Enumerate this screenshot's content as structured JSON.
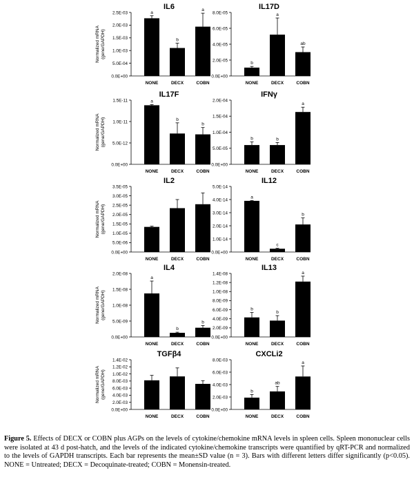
{
  "chart_data": [
    {
      "type": "bar",
      "title": "IL6",
      "ylabel": "Normalized mRNA\n(gene/GAPDH)",
      "categories": [
        "NONE",
        "DECX",
        "COBN"
      ],
      "yticks": [
        "0.0E+00",
        "5.0E-04",
        "1.0E-03",
        "1.5E-03",
        "2.0E-03",
        "2.5E-03"
      ],
      "ylim": [
        0,
        0.0025
      ],
      "values": [
        0.00227,
        0.0011,
        0.00194
      ],
      "errors": [
        0.0001,
        0.00019,
        0.00053
      ],
      "letters": [
        "a",
        "b",
        "a"
      ]
    },
    {
      "type": "bar",
      "title": "IL17D",
      "ylabel": "",
      "categories": [
        "NONE",
        "DECX",
        "COBN"
      ],
      "yticks": [
        "0.0E+00",
        "2.0E-05",
        "4.0E-05",
        "6.0E-05",
        "8.0E-05"
      ],
      "ylim": [
        0,
        8e-05
      ],
      "values": [
        1.05e-05,
        5.2e-05,
        3e-05
      ],
      "errors": [
        1.5e-06,
        2.1e-05,
        6.5e-06
      ],
      "letters": [
        "b",
        "a",
        "ab"
      ]
    },
    {
      "type": "bar",
      "title": "IL17F",
      "ylabel": "Normalized mRNA\n(gene/GAPDH)",
      "categories": [
        "NONE",
        "DECX",
        "COBN"
      ],
      "yticks": [
        "0.0E+00",
        "5.0E-12",
        "1.0E-11",
        "1.5E-11"
      ],
      "ylim": [
        0,
        1.5e-11
      ],
      "values": [
        1.38e-11,
        7.2e-12,
        7e-12
      ],
      "errors": [
        1.5e-13,
        2.5e-12,
        1.6e-12
      ],
      "letters": [
        "a",
        "b",
        "b"
      ]
    },
    {
      "type": "bar",
      "title": "IFNγ",
      "ylabel": "",
      "categories": [
        "NONE",
        "DECX",
        "COBN"
      ],
      "yticks": [
        "0.0E+00",
        "5.0E-05",
        "1.0E-04",
        "1.5E-04",
        "2.0E-04"
      ],
      "ylim": [
        0,
        0.0002
      ],
      "values": [
        6e-05,
        6e-05,
        0.000163
      ],
      "errors": [
        1e-05,
        8e-06,
        1.5e-05
      ],
      "letters": [
        "b",
        "b",
        "a"
      ]
    },
    {
      "type": "bar",
      "title": "IL2",
      "ylabel": "Normalized mRNA\n(gene/GAPDH)",
      "categories": [
        "NONE",
        "DECX",
        "COBN"
      ],
      "yticks": [
        "0.0E+00",
        "5.0E-06",
        "1.0E-05",
        "1.5E-05",
        "2.0E-05",
        "2.5E-05",
        "3.0E-05",
        "3.5E-05"
      ],
      "ylim": [
        0,
        3.5e-05
      ],
      "values": [
        1.34e-05,
        2.34e-05,
        2.55e-05
      ],
      "errors": [
        4e-07,
        4.6e-06,
        6e-06
      ],
      "letters": [
        "",
        "",
        ""
      ]
    },
    {
      "type": "bar",
      "title": "IL12",
      "ylabel": "",
      "categories": [
        "NONE",
        "DECX",
        "COBN"
      ],
      "yticks": [
        "0.0E+00",
        "1.0E-14",
        "2.0E-14",
        "3.0E-14",
        "4.0E-14",
        "5.0E-14"
      ],
      "ylim": [
        0,
        5e-14
      ],
      "values": [
        3.9e-14,
        2.5e-15,
        2.1e-14
      ],
      "errors": [
        3e-16,
        4e-16,
        5e-15
      ],
      "letters": [
        "a",
        "c",
        "b"
      ]
    },
    {
      "type": "bar",
      "title": "IL4",
      "ylabel": "Normalized mRNA\n(gene/GAPDH)",
      "categories": [
        "NONE",
        "DECX",
        "COBN"
      ],
      "yticks": [
        "0.0E+00",
        "5.0E-09",
        "1.0E-08",
        "1.5E-08",
        "2.0E-08"
      ],
      "ylim": [
        0,
        2e-08
      ],
      "values": [
        1.37e-08,
        1.3e-09,
        2.9e-09
      ],
      "errors": [
        3.9e-09,
        2e-10,
        7e-10
      ],
      "letters": [
        "a",
        "b",
        "b"
      ]
    },
    {
      "type": "bar",
      "title": "IL13",
      "ylabel": "",
      "categories": [
        "NONE",
        "DECX",
        "COBN"
      ],
      "yticks": [
        "0.0E+00",
        "2.0E-09",
        "4.0E-09",
        "6.0E-09",
        "8.0E-09",
        "1.0E-08",
        "1.2E-08",
        "1.4E-08"
      ],
      "ylim": [
        0,
        1.4e-08
      ],
      "values": [
        4.3e-09,
        3.6e-09,
        1.22e-08
      ],
      "errors": [
        1.1e-09,
        1.1e-09,
        1.2e-09
      ],
      "letters": [
        "b",
        "b",
        "a"
      ]
    },
    {
      "type": "bar",
      "title": "TGFβ4",
      "ylabel": "Normalized mRNA\n(gene/GAPDH)",
      "categories": [
        "NONE",
        "DECX",
        "COBN"
      ],
      "yticks": [
        "0.0E+00",
        "2.0E-03",
        "4.0E-03",
        "6.0E-03",
        "8.0E-03",
        "1.0E-02",
        "1.2E-02",
        "1.4E-02"
      ],
      "ylim": [
        0,
        0.014
      ],
      "values": [
        0.0082,
        0.0093,
        0.0072
      ],
      "errors": [
        0.0014,
        0.0024,
        0.0009
      ],
      "letters": [
        "",
        "",
        ""
      ]
    },
    {
      "type": "bar",
      "title": "CXCLi2",
      "ylabel": "",
      "categories": [
        "NONE",
        "DECX",
        "COBN"
      ],
      "yticks": [
        "0.0E+00",
        "2.0E-03",
        "4.0E-03",
        "6.0E-03",
        "8.0E-03"
      ],
      "ylim": [
        0,
        0.008
      ],
      "values": [
        0.0019,
        0.0029,
        0.0053
      ],
      "errors": [
        0.0005,
        0.0008,
        0.0017
      ],
      "letters": [
        "b",
        "ab",
        "a"
      ]
    }
  ],
  "caption": {
    "label": "Figure 5.",
    "text": " Effects of DECX or COBN plus AGPs on the levels of cytokine/chemokine mRNA levels in spleen cells. Spleen mononuclear cells were isolated at 43 d post-hatch, and the levels of the indicated cytokine/chemokine transcripts were quantified by qRT-PCR and normalized to the levels of GAPDH transcripts. Each bar represents the mean±SD value (n = 3). Bars with different letters differ significantly (p<0.05). NONE = Untreated; DECX = Decoquinate-treated; COBN = Monensin-treated."
  }
}
